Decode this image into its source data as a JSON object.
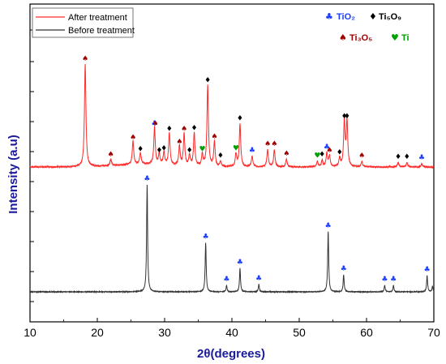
{
  "chart_data": {
    "type": "line",
    "xlabel": "2θ(degrees)",
    "ylabel": "Intensity (a.u)",
    "xlim": [
      10,
      70
    ],
    "xticks": [
      "10",
      "20",
      "30",
      "40",
      "50",
      "60",
      "70"
    ],
    "legend_position": "top-left",
    "series": [
      {
        "name": "After treatment",
        "color": "#ff2a2a",
        "baseline": 0.0,
        "peaks": [
          {
            "x": 18.2,
            "y": 0.96
          },
          {
            "x": 22.0,
            "y": 0.06
          },
          {
            "x": 25.3,
            "y": 0.22
          },
          {
            "x": 26.4,
            "y": 0.11
          },
          {
            "x": 28.5,
            "y": 0.35
          },
          {
            "x": 29.2,
            "y": 0.1
          },
          {
            "x": 29.9,
            "y": 0.12
          },
          {
            "x": 30.7,
            "y": 0.3
          },
          {
            "x": 32.2,
            "y": 0.18
          },
          {
            "x": 32.9,
            "y": 0.3
          },
          {
            "x": 33.7,
            "y": 0.1
          },
          {
            "x": 34.4,
            "y": 0.31
          },
          {
            "x": 35.6,
            "y": 0.11
          },
          {
            "x": 36.4,
            "y": 0.76
          },
          {
            "x": 37.4,
            "y": 0.23
          },
          {
            "x": 38.3,
            "y": 0.05
          },
          {
            "x": 40.6,
            "y": 0.12
          },
          {
            "x": 41.2,
            "y": 0.4
          },
          {
            "x": 43.0,
            "y": 0.1
          },
          {
            "x": 45.3,
            "y": 0.16
          },
          {
            "x": 46.3,
            "y": 0.16
          },
          {
            "x": 48.1,
            "y": 0.07
          },
          {
            "x": 52.7,
            "y": 0.05
          },
          {
            "x": 53.4,
            "y": 0.06
          },
          {
            "x": 54.1,
            "y": 0.13
          },
          {
            "x": 54.5,
            "y": 0.1
          },
          {
            "x": 56.0,
            "y": 0.08
          },
          {
            "x": 56.7,
            "y": 0.42
          },
          {
            "x": 57.1,
            "y": 0.42
          },
          {
            "x": 59.3,
            "y": 0.05
          },
          {
            "x": 64.7,
            "y": 0.04
          },
          {
            "x": 66.0,
            "y": 0.04
          },
          {
            "x": 68.2,
            "y": 0.03
          }
        ]
      },
      {
        "name": "Before treatment",
        "color": "#333333",
        "baseline": 0.0,
        "peaks": [
          {
            "x": 27.4,
            "y": 1.0
          },
          {
            "x": 36.1,
            "y": 0.46
          },
          {
            "x": 39.2,
            "y": 0.06
          },
          {
            "x": 41.2,
            "y": 0.22
          },
          {
            "x": 44.0,
            "y": 0.07
          },
          {
            "x": 54.3,
            "y": 0.56
          },
          {
            "x": 56.6,
            "y": 0.16
          },
          {
            "x": 62.7,
            "y": 0.06
          },
          {
            "x": 64.0,
            "y": 0.06
          },
          {
            "x": 69.0,
            "y": 0.15
          },
          {
            "x": 69.8,
            "y": 0.05
          }
        ]
      }
    ],
    "phase_legend": [
      {
        "symbol": "♣",
        "color": "#1a3cff",
        "label": "TiO₂"
      },
      {
        "symbol": "♦",
        "color": "#000000",
        "label": "Ti₅O₉"
      },
      {
        "symbol": "♠",
        "color": "#a00000",
        "label": "Ti₃O₅"
      },
      {
        "symbol": "♥",
        "color": "#00a000",
        "label": "Ti"
      }
    ],
    "annotations": {
      "after": [
        {
          "x": 18.2,
          "phase": "Ti₃O₅"
        },
        {
          "x": 22.0,
          "phase": "Ti₃O₅"
        },
        {
          "x": 25.3,
          "phase": "Ti₃O₅"
        },
        {
          "x": 26.4,
          "phase": "Ti₅O₉"
        },
        {
          "x": 28.5,
          "phase": "TiO₂"
        },
        {
          "x": 28.6,
          "phase": "Ti₃O₅"
        },
        {
          "x": 29.2,
          "phase": "Ti₅O₉"
        },
        {
          "x": 29.9,
          "phase": "Ti₅O₉"
        },
        {
          "x": 30.7,
          "phase": "Ti₅O₉"
        },
        {
          "x": 32.2,
          "phase": "Ti₃O₅"
        },
        {
          "x": 32.9,
          "phase": "Ti₃O₅"
        },
        {
          "x": 33.7,
          "phase": "Ti₅O₉"
        },
        {
          "x": 34.4,
          "phase": "Ti₅O₉"
        },
        {
          "x": 35.6,
          "phase": "Ti"
        },
        {
          "x": 36.4,
          "phase": "Ti₅O₉"
        },
        {
          "x": 37.4,
          "phase": "Ti₃O₅"
        },
        {
          "x": 38.3,
          "phase": "Ti₅O₉"
        },
        {
          "x": 40.6,
          "phase": "Ti"
        },
        {
          "x": 41.2,
          "phase": "Ti₅O₉"
        },
        {
          "x": 43.0,
          "phase": "TiO₂"
        },
        {
          "x": 45.3,
          "phase": "Ti₃O₅"
        },
        {
          "x": 46.3,
          "phase": "Ti₃O₅"
        },
        {
          "x": 48.1,
          "phase": "Ti₃O₅"
        },
        {
          "x": 52.7,
          "phase": "Ti"
        },
        {
          "x": 53.4,
          "phase": "Ti₅O₉"
        },
        {
          "x": 54.1,
          "phase": "TiO₂"
        },
        {
          "x": 54.5,
          "phase": "Ti₃O₅"
        },
        {
          "x": 56.0,
          "phase": "Ti₅O₉"
        },
        {
          "x": 56.7,
          "phase": "Ti₅O₉"
        },
        {
          "x": 57.1,
          "phase": "Ti₅O₉"
        },
        {
          "x": 59.3,
          "phase": "Ti₃O₅"
        },
        {
          "x": 64.7,
          "phase": "Ti₅O₉"
        },
        {
          "x": 66.0,
          "phase": "Ti₅O₉"
        },
        {
          "x": 68.2,
          "phase": "TiO₂"
        }
      ],
      "before": [
        {
          "x": 27.4,
          "phase": "TiO₂"
        },
        {
          "x": 36.1,
          "phase": "TiO₂"
        },
        {
          "x": 39.2,
          "phase": "TiO₂"
        },
        {
          "x": 41.2,
          "phase": "TiO₂"
        },
        {
          "x": 44.0,
          "phase": "TiO₂"
        },
        {
          "x": 54.3,
          "phase": "TiO₂"
        },
        {
          "x": 56.6,
          "phase": "TiO₂"
        },
        {
          "x": 62.7,
          "phase": "TiO₂"
        },
        {
          "x": 64.0,
          "phase": "TiO₂"
        },
        {
          "x": 69.0,
          "phase": "TiO₂"
        }
      ]
    },
    "grid": false
  }
}
